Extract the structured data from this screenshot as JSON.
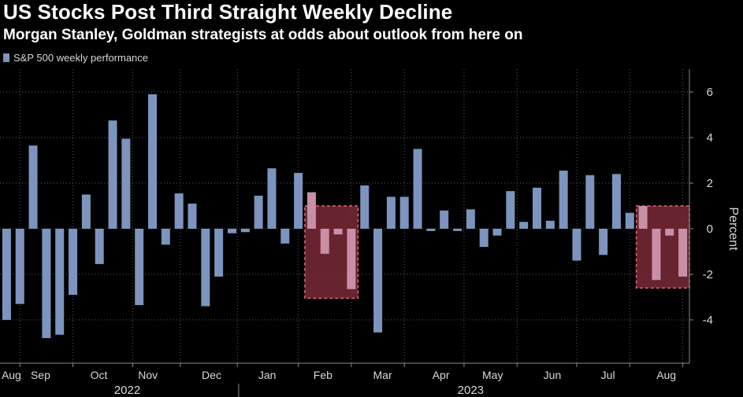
{
  "header": {
    "title": "US Stocks Post Third Straight Weekly Decline",
    "subtitle": "Morgan Stanley, Goldman strategists at odds about outlook from here on"
  },
  "colors": {
    "background": "#000000",
    "bar": "#7d94be",
    "highlight_bar": "#c98fa6",
    "highlight_fill": "#7a2a36",
    "highlight_border": "#e06a74",
    "grid": "#5a5a5a"
  },
  "chart_data": {
    "type": "bar",
    "title": "US Stocks Post Third Straight Weekly Decline",
    "subtitle": "Morgan Stanley, Goldman strategists at odds about outlook from here on",
    "series": [
      {
        "name": "S&P 500 weekly performance",
        "values": [
          -4.0,
          -3.3,
          3.65,
          -4.8,
          -4.65,
          -2.9,
          1.5,
          -1.55,
          4.75,
          3.95,
          -3.35,
          5.9,
          -0.7,
          1.55,
          1.1,
          -3.4,
          -2.1,
          -0.2,
          -0.15,
          1.45,
          2.65,
          -0.65,
          2.45,
          1.6,
          -1.1,
          -0.25,
          -2.65,
          1.9,
          -4.55,
          1.4,
          1.4,
          3.5,
          -0.1,
          0.8,
          -0.1,
          0.85,
          -0.8,
          -0.3,
          1.65,
          0.3,
          1.8,
          0.35,
          2.55,
          -1.4,
          2.35,
          -1.15,
          2.4,
          0.7,
          1.0,
          -2.25,
          -0.3,
          -2.1
        ]
      }
    ],
    "highlighted_weeks": [
      [
        23,
        26
      ],
      [
        48,
        51
      ]
    ],
    "month_labels": [
      {
        "label": "Aug",
        "week": 0.5
      },
      {
        "label": "Sep",
        "week": 2.7
      },
      {
        "label": "Oct",
        "week": 7.1
      },
      {
        "label": "Nov",
        "week": 10.8
      },
      {
        "label": "Dec",
        "week": 15.6
      },
      {
        "label": "Jan",
        "week": 19.8
      },
      {
        "label": "Feb",
        "week": 24.0
      },
      {
        "label": "Mar",
        "week": 28.5
      },
      {
        "label": "Apr",
        "week": 32.9
      },
      {
        "label": "May",
        "week": 36.8
      },
      {
        "label": "Jun",
        "week": 41.3
      },
      {
        "label": "Jul",
        "week": 45.5
      },
      {
        "label": "Aug",
        "week": 49.9
      }
    ],
    "years": [
      {
        "label": "2022",
        "week": 9.1
      },
      {
        "label": "2023",
        "week": 35.0
      }
    ],
    "year_divider_week": 18.0,
    "month_tick_weeks": [
      1.5,
      5.5,
      10,
      13.6,
      17.9,
      22.5,
      26.5,
      30.5,
      35,
      39,
      43.5,
      47.5,
      51.5
    ],
    "ylim": [
      -5.9,
      7.0
    ],
    "yticks": [
      -4,
      -2,
      0,
      2,
      4,
      6
    ],
    "ylabel": "Percent",
    "legend_label": "S&P 500 weekly performance",
    "legend_position": "top-left"
  }
}
